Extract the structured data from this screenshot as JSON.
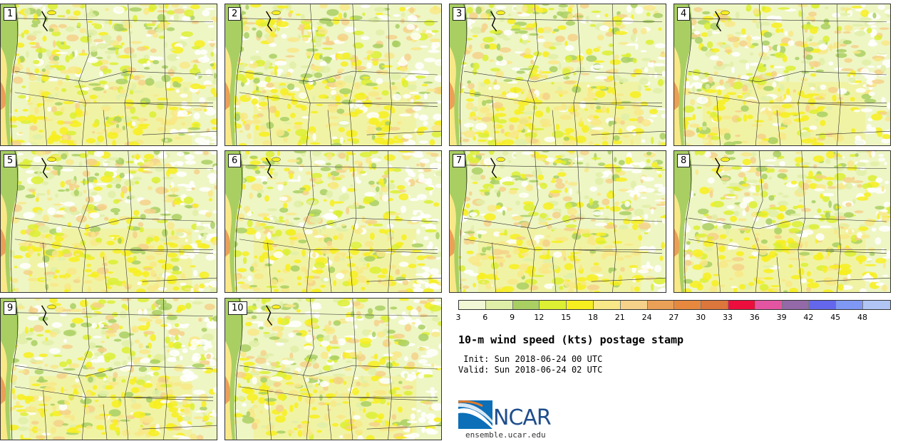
{
  "panels": [
    {
      "label": "1"
    },
    {
      "label": "2"
    },
    {
      "label": "3"
    },
    {
      "label": "4"
    },
    {
      "label": "5"
    },
    {
      "label": "6"
    },
    {
      "label": "7"
    },
    {
      "label": "8"
    },
    {
      "label": "9"
    },
    {
      "label": "10"
    }
  ],
  "colorbar": {
    "colors": [
      "#f2f7d6",
      "#e0efa8",
      "#a9cf63",
      "#dcef32",
      "#f7ee1f",
      "#f8e888",
      "#f5d189",
      "#eba057",
      "#e6893f",
      "#db763c",
      "#ec0e3c",
      "#e455a1",
      "#9369a8",
      "#6467ec",
      "#7f98f4",
      "#b1c5f5"
    ],
    "ticks": [
      "3",
      "6",
      "9",
      "12",
      "15",
      "18",
      "21",
      "24",
      "27",
      "30",
      "33",
      "36",
      "39",
      "42",
      "45",
      "48"
    ]
  },
  "title": "10-m wind speed (kts) postage stamp",
  "init": " Init: Sun 2018-06-24 00 UTC",
  "valid": "Valid: Sun 2018-06-24 02 UTC",
  "logo_text": "NCAR",
  "site": "ensemble.ucar.edu"
}
